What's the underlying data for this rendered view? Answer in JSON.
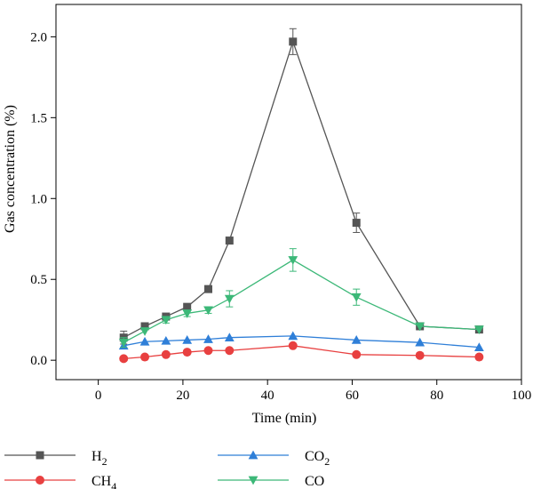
{
  "chart_data": {
    "type": "line",
    "xlabel": "Time (min)",
    "ylabel": "Gas concentration (%)",
    "xlim": [
      -10,
      100
    ],
    "ylim": [
      -0.12,
      2.2
    ],
    "xticks": [
      0,
      20,
      40,
      60,
      80,
      100
    ],
    "yticks": [
      0.0,
      0.5,
      1.0,
      1.5,
      2.0
    ],
    "ytick_labels": [
      "0.0",
      "0.5",
      "1.0",
      "1.5",
      "2.0"
    ],
    "legend_placement": "bottom",
    "series": [
      {
        "name": "H",
        "name_sub": "2",
        "color": "#555555",
        "marker": "square",
        "x": [
          6,
          11,
          16,
          21,
          26,
          31,
          46,
          61,
          76,
          90
        ],
        "y": [
          0.14,
          0.21,
          0.27,
          0.33,
          0.44,
          0.74,
          1.97,
          0.85,
          0.21,
          0.19
        ],
        "err": [
          0.04,
          0.0,
          0.0,
          0.0,
          0.0,
          0.0,
          0.08,
          0.06,
          0.0,
          0.0
        ]
      },
      {
        "name": "CH",
        "name_sub": "4",
        "color": "#e84040",
        "marker": "circle",
        "x": [
          6,
          11,
          16,
          21,
          26,
          31,
          46,
          61,
          76,
          90
        ],
        "y": [
          0.01,
          0.02,
          0.035,
          0.05,
          0.06,
          0.06,
          0.09,
          0.035,
          0.03,
          0.02
        ],
        "err": [
          0,
          0,
          0,
          0,
          0,
          0,
          0,
          0,
          0,
          0
        ]
      },
      {
        "name": "CO",
        "name_sub": "2",
        "color": "#2f7fd8",
        "marker": "triangle-up",
        "x": [
          6,
          11,
          16,
          21,
          26,
          31,
          46,
          61,
          76,
          90
        ],
        "y": [
          0.09,
          0.115,
          0.12,
          0.125,
          0.13,
          0.14,
          0.15,
          0.125,
          0.11,
          0.08
        ],
        "err": [
          0,
          0,
          0,
          0,
          0,
          0,
          0,
          0,
          0,
          0
        ]
      },
      {
        "name": "CO",
        "name_sub": "",
        "color": "#3cb878",
        "marker": "triangle-down",
        "x": [
          6,
          11,
          16,
          21,
          26,
          31,
          46,
          61,
          76,
          90
        ],
        "y": [
          0.11,
          0.18,
          0.25,
          0.29,
          0.31,
          0.38,
          0.62,
          0.39,
          0.21,
          0.19
        ],
        "err": [
          0.03,
          0.0,
          0.02,
          0.02,
          0.02,
          0.05,
          0.07,
          0.05,
          0.0,
          0.0
        ]
      }
    ]
  }
}
